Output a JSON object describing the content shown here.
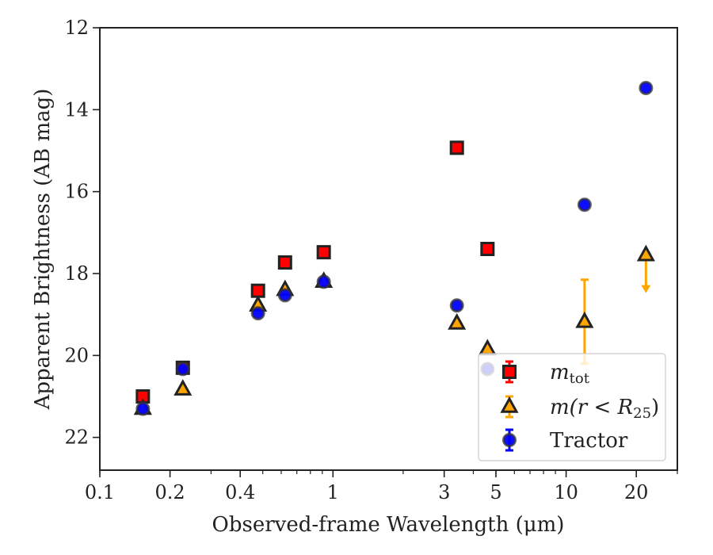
{
  "chart_data": {
    "type": "scatter",
    "title": "",
    "xlabel": "Observed-frame Wavelength (μm)",
    "ylabel": "Apparent Brightness (AB mag)",
    "xscale": "log",
    "xlim": [
      0.1,
      30
    ],
    "ylim": [
      22.8,
      12
    ],
    "y_inverted": true,
    "xticks": [
      0.1,
      0.2,
      0.4,
      1,
      3,
      5,
      10,
      20
    ],
    "xtick_labels": [
      "0.1",
      "0.2",
      "0.4",
      "1",
      "3",
      "5",
      "10",
      "20"
    ],
    "yticks": [
      12,
      14,
      16,
      18,
      20,
      22
    ],
    "ytick_labels": [
      "12",
      "14",
      "16",
      "18",
      "20",
      "22"
    ],
    "grid": false,
    "legend_position": "lower-right",
    "series": [
      {
        "name": "m_tot",
        "label_main": "m",
        "label_sub": "tot",
        "marker": "square",
        "color": "#ff0000",
        "edge": "#222222",
        "points": [
          {
            "x": 0.153,
            "y": 21.0
          },
          {
            "x": 0.227,
            "y": 20.3
          },
          {
            "x": 0.477,
            "y": 18.42
          },
          {
            "x": 0.623,
            "y": 17.73
          },
          {
            "x": 0.913,
            "y": 17.48
          },
          {
            "x": 3.4,
            "y": 14.93
          },
          {
            "x": 4.6,
            "y": 17.4
          }
        ]
      },
      {
        "name": "m(r < R25)",
        "label_main": "m(r < R",
        "label_sub": "25",
        "label_end": ")",
        "marker": "triangle",
        "color": "#ffa500",
        "edge": "#222222",
        "points": [
          {
            "x": 0.153,
            "y": 21.3
          },
          {
            "x": 0.227,
            "y": 20.83
          },
          {
            "x": 0.477,
            "y": 18.78
          },
          {
            "x": 0.623,
            "y": 18.4
          },
          {
            "x": 0.913,
            "y": 18.2
          },
          {
            "x": 3.4,
            "y": 19.22
          },
          {
            "x": 4.6,
            "y": 19.85
          },
          {
            "x": 12.0,
            "y": 19.18,
            "yerr_low": 18.15,
            "yerr_high": 20.2
          },
          {
            "x": 22.0,
            "y": 17.55,
            "upper_limit_to": 18.4
          }
        ]
      },
      {
        "name": "Tractor",
        "label_main": "Tractor",
        "marker": "circle",
        "color": "#0000ff",
        "edge": "#333333",
        "points": [
          {
            "x": 0.153,
            "y": 21.3
          },
          {
            "x": 0.227,
            "y": 20.33
          },
          {
            "x": 0.477,
            "y": 18.97
          },
          {
            "x": 0.623,
            "y": 18.53
          },
          {
            "x": 0.913,
            "y": 18.2
          },
          {
            "x": 3.4,
            "y": 18.78
          },
          {
            "x": 4.6,
            "y": 20.33
          },
          {
            "x": 12.0,
            "y": 16.32
          },
          {
            "x": 22.0,
            "y": 13.47
          }
        ]
      }
    ]
  }
}
